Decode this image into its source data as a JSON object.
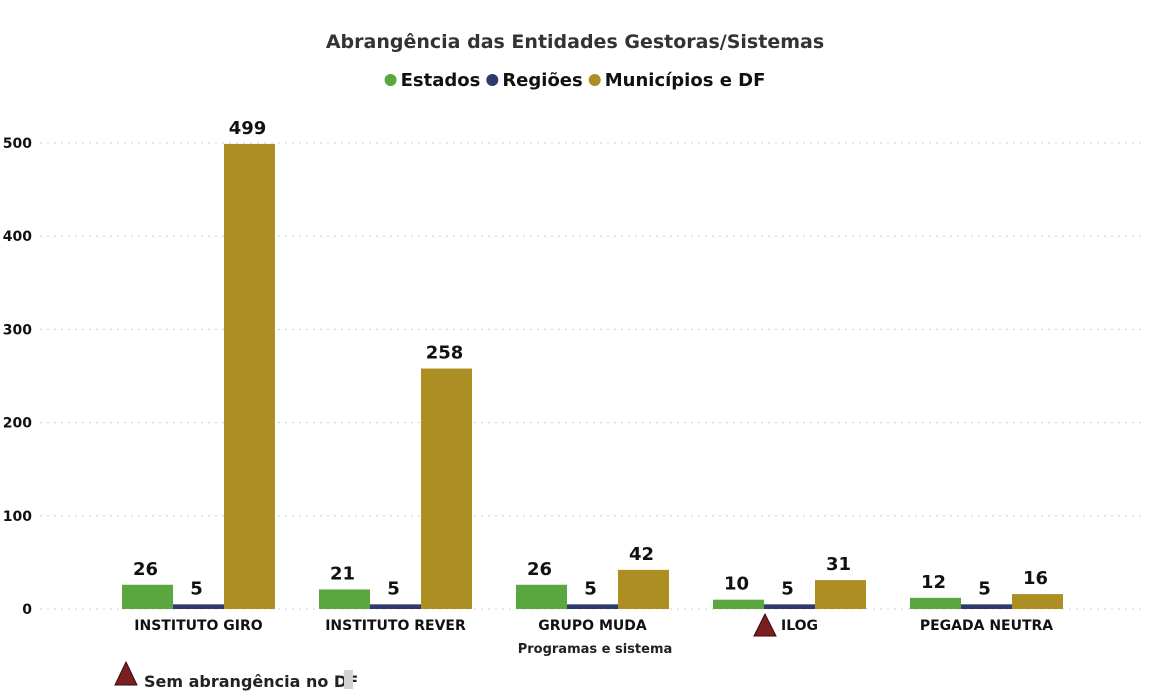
{
  "chart_data": {
    "type": "bar",
    "title": "Abrangência das Entidades Gestoras/Sistemas",
    "xlabel": "Programas e sistema",
    "ylabel": "",
    "ylim": [
      0,
      500
    ],
    "yticks": [
      0,
      100,
      200,
      300,
      400,
      500
    ],
    "grid": true,
    "legend_position": "top-center",
    "categories": [
      "INSTITUTO GIRO",
      "INSTITUTO REVER",
      "GRUPO MUDA",
      "ILOG",
      "PEGADA NEUTRA"
    ],
    "series": [
      {
        "name": "Estados",
        "color": "#5aa63f",
        "values": [
          26,
          21,
          26,
          10,
          12
        ]
      },
      {
        "name": "Regiões",
        "color": "#2e3a6e",
        "values": [
          5,
          5,
          5,
          5,
          5
        ]
      },
      {
        "name": "Municípios e DF",
        "color": "#ad8e22",
        "values": [
          499,
          258,
          42,
          31,
          16
        ]
      }
    ],
    "flagged_categories": [
      "ILOG"
    ],
    "flag_color": "#7a1f1f",
    "annotation": "Sem abrangência no DF"
  }
}
